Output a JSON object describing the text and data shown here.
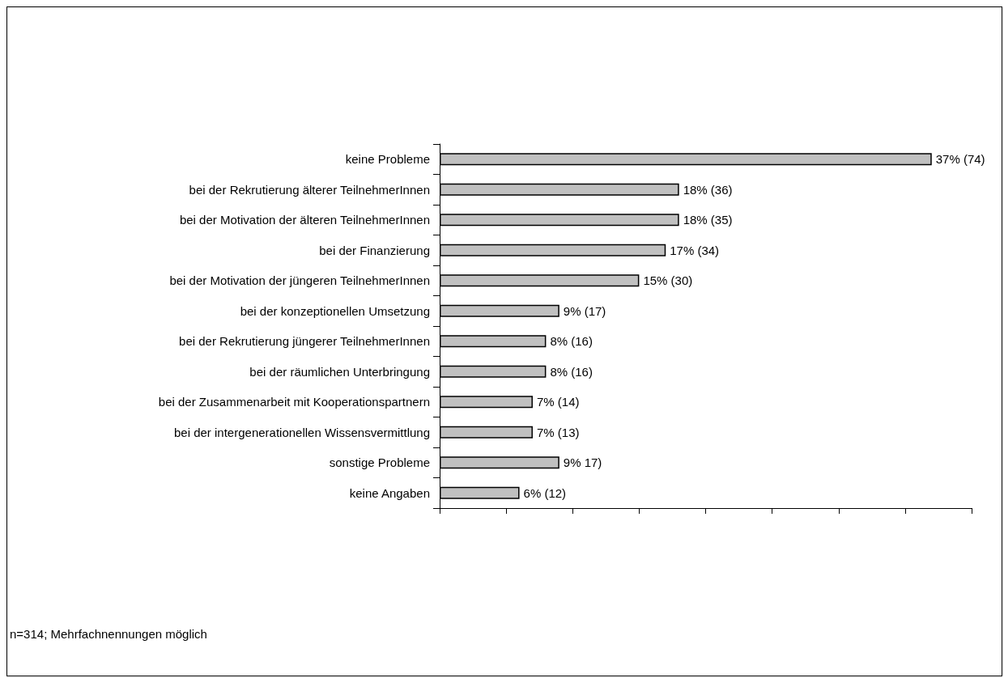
{
  "chart_data": {
    "type": "bar",
    "orientation": "horizontal",
    "categories": [
      "keine Probleme",
      "bei der Rekrutierung älterer TeilnehmerInnen",
      "bei der Motivation der älteren TeilnehmerInnen",
      "bei der Finanzierung",
      "bei der Motivation der jüngeren TeilnehmerInnen",
      "bei der konzeptionellen Umsetzung",
      "bei der Rekrutierung jüngerer TeilnehmerInnen",
      "bei der räumlichen Unterbringung",
      "bei der Zusammenarbeit mit Kooperationspartnern",
      "bei der intergenerationellen Wissensvermittlung",
      "sonstige Probleme",
      "keine Angaben"
    ],
    "values": [
      37,
      18,
      18,
      17,
      15,
      9,
      8,
      8,
      7,
      7,
      9,
      6
    ],
    "value_labels": [
      "37% (74)",
      "18% (36)",
      "18% (35)",
      "17% (34)",
      "15% (30)",
      "9% (17)",
      "8% (16)",
      "8% (16)",
      "7% (14)",
      "7% (13)",
      "9% 17)",
      "6% (12)"
    ],
    "color": "#c0c0c0",
    "xlim": [
      0,
      40
    ],
    "xticks": [
      {
        "value": 0,
        "label": null
      },
      {
        "value": 5,
        "label": null
      },
      {
        "value": 10,
        "label": null
      },
      {
        "value": 15,
        "label": null
      },
      {
        "value": 20,
        "label": null
      },
      {
        "value": 25,
        "label": null
      },
      {
        "value": 30,
        "label": null
      },
      {
        "value": 35,
        "label": null
      },
      {
        "value": 40,
        "label": null
      }
    ],
    "tick_labels": "y",
    "grid": false,
    "annotations": [
      "n=314; Mehrfachnennungen möglich"
    ]
  }
}
